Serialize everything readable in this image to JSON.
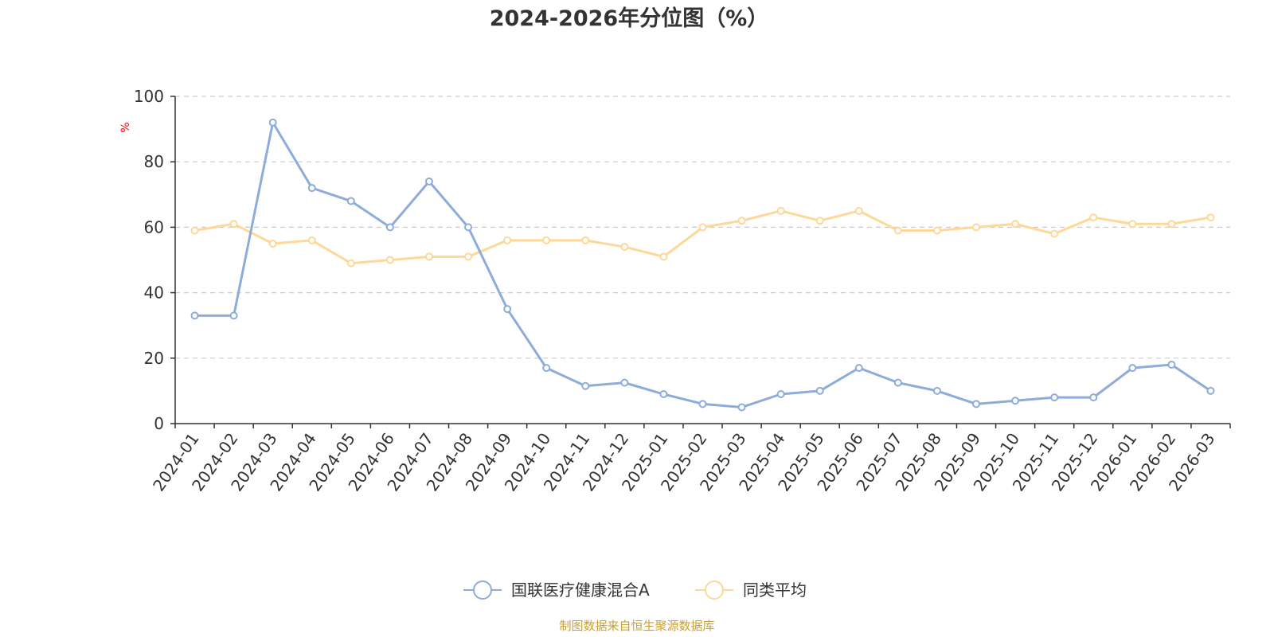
{
  "colors": {
    "series_a": "#8eacd9",
    "series_b": "#fdd899",
    "axis": "#333333",
    "grid": "#cccccc",
    "unit": "#ff0000",
    "source": "#c9a033",
    "title": "#333333"
  },
  "chart_data": {
    "type": "line",
    "title": "2024-2026年分位图（%）",
    "ylabel": "%",
    "xlabel": "",
    "ylim": [
      0,
      100
    ],
    "yticks": [
      0,
      20,
      40,
      60,
      80,
      100
    ],
    "grid": true,
    "legend_position": "bottom-center",
    "source_text": "制图数据来自恒生聚源数据库",
    "categories": [
      "2024-01",
      "2024-02",
      "2024-03",
      "2024-04",
      "2024-05",
      "2024-06",
      "2024-07",
      "2024-08",
      "2024-09",
      "2024-10",
      "2024-11",
      "2024-12",
      "2025-01",
      "2025-02",
      "2025-03",
      "2025-04",
      "2025-05",
      "2025-06",
      "2025-07",
      "2025-08",
      "2025-09",
      "2025-10",
      "2025-11",
      "2025-12",
      "2026-01",
      "2026-02",
      "2026-03"
    ],
    "series": [
      {
        "name": "国联医疗健康混合A",
        "color": "#8eacd9",
        "values": [
          33,
          33,
          92,
          72,
          68,
          60,
          74,
          60,
          35,
          17,
          11.5,
          12.5,
          9,
          6,
          5,
          9,
          10,
          17,
          12.5,
          10,
          6,
          7,
          8,
          8,
          17,
          18,
          10
        ]
      },
      {
        "name": "同类平均",
        "color": "#fdd899",
        "values": [
          59,
          61,
          55,
          56,
          49,
          50,
          51,
          51,
          56,
          56,
          56,
          54,
          51,
          60,
          62,
          65,
          62,
          65,
          59,
          59,
          60,
          61,
          58,
          63,
          61,
          61,
          63
        ]
      }
    ]
  }
}
